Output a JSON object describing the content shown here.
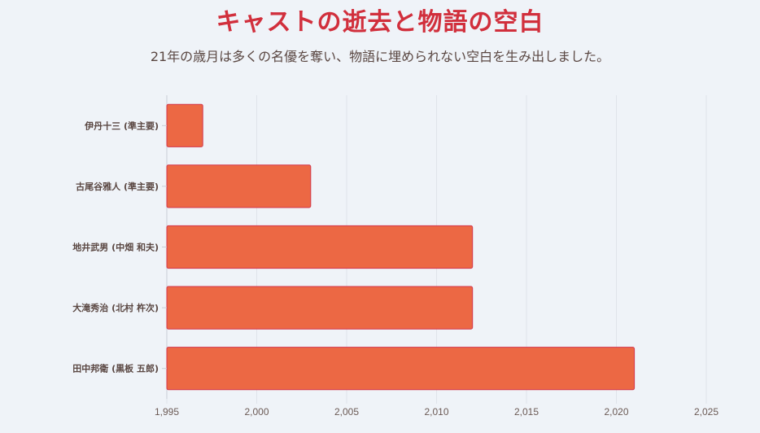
{
  "header": {
    "title": "キャストの逝去と物語の空白",
    "subtitle": "21年の歳月は多くの名優を奪い、物語に埋められない空白を生み出しました。"
  },
  "colors": {
    "bar_fill": "#ec6844",
    "bar_stroke": "#d3344a",
    "grid": "#dfe3ea",
    "title": "#d12f3c"
  },
  "chart_data": {
    "type": "bar",
    "orientation": "horizontal",
    "title": "キャストの逝去と物語の空白",
    "xlabel": "",
    "ylabel": "",
    "categories": [
      "伊丹十三 (準主要)",
      "古尾谷雅人 (準主要)",
      "地井武男 (中畑 和夫)",
      "大滝秀治 (北村 杵次)",
      "田中邦衛 (黒板 五郎)"
    ],
    "values": [
      1997,
      2003,
      2012,
      2012,
      2021
    ],
    "xlim": [
      1995,
      2025
    ],
    "xticks": [
      1995,
      2000,
      2005,
      2010,
      2015,
      2020,
      2025
    ],
    "xtick_labels": [
      "1,995",
      "2,000",
      "2,005",
      "2,010",
      "2,015",
      "2,020",
      "2,025"
    ],
    "grid": true,
    "legend": "none"
  }
}
